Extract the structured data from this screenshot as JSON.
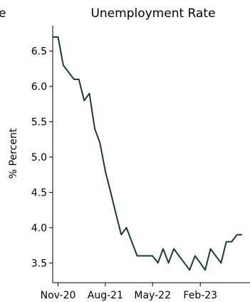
{
  "chart_data": {
    "type": "line",
    "title": "Unemployment Rate",
    "partial_left_title": "e",
    "xlabel": "",
    "ylabel": "% Percent",
    "ylim": [
      3.22,
      6.86
    ],
    "xlim": [
      "2020-10-01",
      "2023-11-15"
    ],
    "y_ticks": [
      3.5,
      4.0,
      4.5,
      5.0,
      5.5,
      6.0,
      6.5
    ],
    "y_tick_labels": [
      "3.5",
      "4.0",
      "4.5",
      "5.0",
      "5.5",
      "6.0",
      "6.5"
    ],
    "x_ticks": [
      "2020-11-01",
      "2021-08-01",
      "2022-05-01",
      "2023-02-01"
    ],
    "x_tick_labels": [
      "Nov-20",
      "Aug-21",
      "May-22",
      "Feb-23"
    ],
    "grid": false,
    "line_color": "#1a3a3a",
    "series": [
      {
        "x": [
          "2020-10-01",
          "2020-11-01",
          "2020-12-01",
          "2021-01-01",
          "2021-02-01",
          "2021-03-01",
          "2021-04-01",
          "2021-05-01",
          "2021-06-01",
          "2021-07-01",
          "2021-08-01",
          "2021-09-01",
          "2021-10-01",
          "2021-11-01",
          "2021-12-01",
          "2022-01-01",
          "2022-02-01",
          "2022-03-01",
          "2022-04-01",
          "2022-05-01",
          "2022-06-01",
          "2022-07-01",
          "2022-08-01",
          "2022-09-01",
          "2022-10-01",
          "2022-11-01",
          "2022-12-01",
          "2023-01-01",
          "2023-02-01",
          "2023-03-01",
          "2023-04-01",
          "2023-05-01",
          "2023-06-01",
          "2023-07-01",
          "2023-08-01",
          "2023-09-01",
          "2023-10-01"
        ],
        "y": [
          6.7,
          6.7,
          6.3,
          6.2,
          6.1,
          6.1,
          5.8,
          5.9,
          5.4,
          5.2,
          4.8,
          4.5,
          4.2,
          3.9,
          4.0,
          3.8,
          3.6,
          3.6,
          3.6,
          3.6,
          3.5,
          3.7,
          3.5,
          3.7,
          3.6,
          3.5,
          3.4,
          3.6,
          3.5,
          3.4,
          3.7,
          3.6,
          3.5,
          3.8,
          3.8,
          3.9,
          3.9
        ]
      }
    ]
  }
}
